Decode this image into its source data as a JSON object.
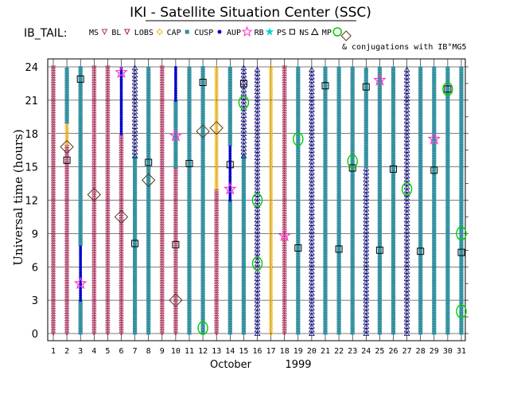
{
  "chart_data": {
    "type": "scatter",
    "title": "IKI - Satellite Situation Center (SSC)",
    "subtitle": "IB_TAIL:",
    "xlabel": "October",
    "xlabel_year": "1999",
    "ylabel": "Universal time (hours)",
    "x_ticks": [
      "1",
      "2",
      "3",
      "4",
      "5",
      "6",
      "7",
      "8",
      "9",
      "10",
      "11",
      "12",
      "13",
      "14",
      "15",
      "16",
      "17",
      "18",
      "19",
      "20",
      "21",
      "22",
      "23",
      "24",
      "25",
      "26",
      "27",
      "28",
      "29",
      "30",
      "31"
    ],
    "y_ticks": [
      0,
      3,
      6,
      9,
      12,
      15,
      18,
      21,
      24
    ],
    "xlim": [
      1,
      31
    ],
    "ylim": [
      0,
      24
    ],
    "legend": [
      {
        "code": "MS",
        "label": "MS",
        "color": "#b03060",
        "marker": "triangle-down"
      },
      {
        "code": "BL",
        "label": "BL",
        "color": "#a02050",
        "marker": "triangle-down-small"
      },
      {
        "code": "LOBS",
        "label": "LOBS",
        "color": "#f0b000",
        "marker": "diamond-small"
      },
      {
        "code": "CAP",
        "label": "CAP",
        "color": "#2f8f9f",
        "marker": "square-filled"
      },
      {
        "code": "CUSP",
        "label": "CUSP",
        "color": "#0000cc",
        "marker": "dot"
      },
      {
        "code": "AUP",
        "label": "AUP",
        "color": "#ff33cc",
        "marker": "star"
      },
      {
        "code": "RB",
        "label": "RB",
        "color": "#00d0d0",
        "marker": "star-small"
      },
      {
        "code": "PS",
        "label": "PS",
        "color": "#888888",
        "marker": "square-open"
      },
      {
        "code": "NS",
        "label": "NS",
        "color": "#000080",
        "marker": "triangle-up"
      },
      {
        "code": "MP",
        "label": "MP",
        "color": "#00cc00",
        "marker": "circle"
      }
    ],
    "conjugation_note": "& conjugations with IB°MG5",
    "columns": [
      {
        "day": 1,
        "segments": [
          {
            "region": "MS",
            "from": 0,
            "to": 24
          }
        ]
      },
      {
        "day": 2,
        "segments": [
          {
            "region": "MS",
            "from": 0,
            "to": 17
          },
          {
            "region": "LOBS",
            "from": 17,
            "to": 19
          },
          {
            "region": "CAP",
            "from": 19,
            "to": 24
          }
        ]
      },
      {
        "day": 3,
        "segments": [
          {
            "region": "CAP",
            "from": 0,
            "to": 3
          },
          {
            "region": "CUSP",
            "from": 3,
            "to": 8
          },
          {
            "region": "CAP",
            "from": 8,
            "to": 24
          }
        ]
      },
      {
        "day": 4,
        "segments": [
          {
            "region": "MS",
            "from": 0,
            "to": 24
          }
        ]
      },
      {
        "day": 5,
        "segments": [
          {
            "region": "MS",
            "from": 0,
            "to": 24
          }
        ]
      },
      {
        "day": 6,
        "segments": [
          {
            "region": "MS",
            "from": 0,
            "to": 18
          },
          {
            "region": "CUSP",
            "from": 18,
            "to": 24
          }
        ]
      },
      {
        "day": 7,
        "segments": [
          {
            "region": "CAP",
            "from": 0,
            "to": 2
          },
          {
            "region": "CAP",
            "from": 2,
            "to": 16
          },
          {
            "region": "NS",
            "from": 16,
            "to": 24
          }
        ]
      },
      {
        "day": 8,
        "segments": [
          {
            "region": "CAP",
            "from": 0,
            "to": 24
          }
        ]
      },
      {
        "day": 9,
        "segments": [
          {
            "region": "MS",
            "from": 0,
            "to": 24
          }
        ]
      },
      {
        "day": 10,
        "segments": [
          {
            "region": "MS",
            "from": 0,
            "to": 15
          },
          {
            "region": "CAP",
            "from": 15,
            "to": 21
          },
          {
            "region": "CUSP",
            "from": 21,
            "to": 24
          }
        ]
      },
      {
        "day": 11,
        "segments": [
          {
            "region": "CAP",
            "from": 0,
            "to": 24
          }
        ]
      },
      {
        "day": 12,
        "segments": [
          {
            "region": "CAP",
            "from": 0,
            "to": 12
          },
          {
            "region": "CAP",
            "from": 12,
            "to": 24
          }
        ]
      },
      {
        "day": 13,
        "segments": [
          {
            "region": "MS",
            "from": 0,
            "to": 13
          },
          {
            "region": "LOBS",
            "from": 13,
            "to": 24
          }
        ]
      },
      {
        "day": 14,
        "segments": [
          {
            "region": "CAP",
            "from": 0,
            "to": 12
          },
          {
            "region": "CUSP",
            "from": 12,
            "to": 17
          },
          {
            "region": "CAP",
            "from": 17,
            "to": 24
          }
        ]
      },
      {
        "day": 15,
        "segments": [
          {
            "region": "CAP",
            "from": 0,
            "to": 16
          },
          {
            "region": "NS",
            "from": 16,
            "to": 24
          }
        ]
      },
      {
        "day": 16,
        "segments": [
          {
            "region": "NS",
            "from": 0,
            "to": 24
          }
        ]
      },
      {
        "day": 17,
        "segments": [
          {
            "region": "LOBS",
            "from": 0,
            "to": 24
          }
        ]
      },
      {
        "day": 18,
        "segments": [
          {
            "region": "MS",
            "from": 0,
            "to": 24
          }
        ]
      },
      {
        "day": 19,
        "segments": [
          {
            "region": "CAP",
            "from": 0,
            "to": 24
          }
        ]
      },
      {
        "day": 20,
        "segments": [
          {
            "region": "NS",
            "from": 0,
            "to": 24
          }
        ]
      },
      {
        "day": 21,
        "segments": [
          {
            "region": "CAP",
            "from": 0,
            "to": 24
          }
        ]
      },
      {
        "day": 22,
        "segments": [
          {
            "region": "CAP",
            "from": 0,
            "to": 24
          }
        ]
      },
      {
        "day": 23,
        "segments": [
          {
            "region": "CAP",
            "from": 0,
            "to": 24
          }
        ]
      },
      {
        "day": 24,
        "segments": [
          {
            "region": "NS",
            "from": 0,
            "to": 15
          },
          {
            "region": "CAP",
            "from": 15,
            "to": 24
          }
        ]
      },
      {
        "day": 25,
        "segments": [
          {
            "region": "CAP",
            "from": 0,
            "to": 24
          }
        ]
      },
      {
        "day": 26,
        "segments": [
          {
            "region": "CAP",
            "from": 0,
            "to": 24
          }
        ]
      },
      {
        "day": 27,
        "segments": [
          {
            "region": "NS",
            "from": 0,
            "to": 24
          }
        ]
      },
      {
        "day": 28,
        "segments": [
          {
            "region": "CAP",
            "from": 0,
            "to": 24
          }
        ]
      },
      {
        "day": 29,
        "segments": [
          {
            "region": "CAP",
            "from": 0,
            "to": 24
          }
        ]
      },
      {
        "day": 30,
        "segments": [
          {
            "region": "CAP",
            "from": 0,
            "to": 24
          }
        ]
      },
      {
        "day": 31,
        "segments": [
          {
            "region": "CAP",
            "from": 0,
            "to": 24
          }
        ]
      }
    ],
    "special_markers": [
      {
        "day": 2,
        "hour": 16.8,
        "marker": "LOBS-diamond"
      },
      {
        "day": 4,
        "hour": 12.5,
        "marker": "MP-diamond"
      },
      {
        "day": 6,
        "hour": 10.5,
        "marker": "MP-diamond"
      },
      {
        "day": 8,
        "hour": 13.8,
        "marker": "MP-diamond"
      },
      {
        "day": 10,
        "hour": 3.0,
        "marker": "MP-diamond"
      },
      {
        "day": 12,
        "hour": 18.2,
        "marker": "MP-diamond"
      },
      {
        "day": 13,
        "hour": 18.5,
        "marker": "MP-diamond"
      },
      {
        "day": 3,
        "hour": 4.5,
        "marker": "AUP"
      },
      {
        "day": 6,
        "hour": 23.5,
        "marker": "AUP"
      },
      {
        "day": 10,
        "hour": 17.8,
        "marker": "AUP"
      },
      {
        "day": 14,
        "hour": 13.0,
        "marker": "AUP"
      },
      {
        "day": 18,
        "hour": 8.8,
        "marker": "AUP"
      },
      {
        "day": 25,
        "hour": 22.8,
        "marker": "AUP"
      },
      {
        "day": 29,
        "hour": 17.5,
        "marker": "AUP"
      },
      {
        "day": 12,
        "hour": 0.5,
        "marker": "MP"
      },
      {
        "day": 15,
        "hour": 20.8,
        "marker": "MP"
      },
      {
        "day": 16,
        "hour": 12.0,
        "marker": "MP"
      },
      {
        "day": 16,
        "hour": 6.3,
        "marker": "MP"
      },
      {
        "day": 19,
        "hour": 17.5,
        "marker": "MP"
      },
      {
        "day": 23,
        "hour": 15.5,
        "marker": "MP"
      },
      {
        "day": 27,
        "hour": 13.0,
        "marker": "MP"
      },
      {
        "day": 30,
        "hour": 22.0,
        "marker": "MP"
      },
      {
        "day": 31,
        "hour": 9.0,
        "marker": "MP"
      },
      {
        "day": 31,
        "hour": 2.0,
        "marker": "MP"
      }
    ]
  }
}
